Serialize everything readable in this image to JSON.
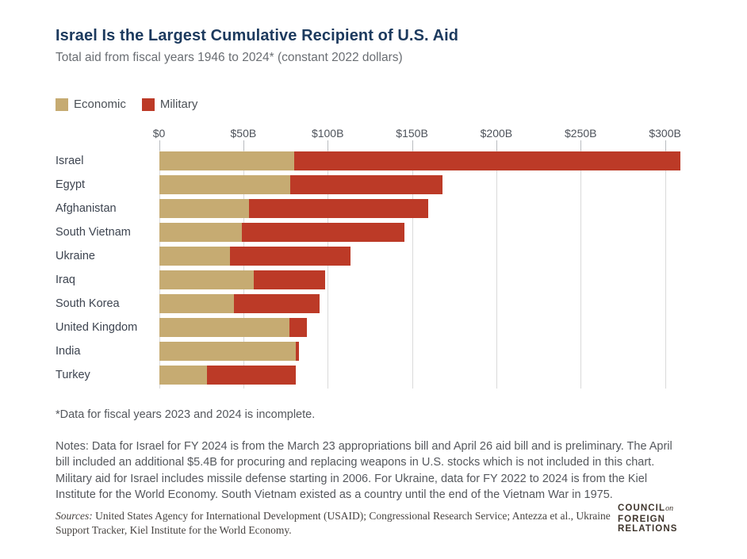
{
  "chart_data": {
    "type": "bar",
    "orientation": "horizontal",
    "stacked": true,
    "title": "Israel Is the Largest Cumulative Recipient of U.S. Aid",
    "subtitle": "Total aid from fiscal years 1946 to 2024* (constant 2022 dollars)",
    "unit": "billions of constant 2022 U.S. dollars",
    "categories": [
      "Israel",
      "Egypt",
      "Afghanistan",
      "South Vietnam",
      "Ukraine",
      "Iraq",
      "South Korea",
      "United Kingdom",
      "India",
      "Turkey"
    ],
    "series": [
      {
        "name": "Economic",
        "color": "#c6ab72",
        "values": [
          80,
          78,
          53.5,
          49,
          42,
          56,
          44.5,
          77.5,
          81,
          28.5
        ]
      },
      {
        "name": "Military",
        "color": "#bc3a27",
        "values": [
          229,
          90,
          106,
          96.5,
          71.5,
          42.5,
          50.5,
          10,
          2,
          52.5
        ]
      }
    ],
    "totals": [
      309,
      168,
      159.5,
      145.5,
      113.5,
      98.5,
      95,
      87.5,
      83,
      81
    ],
    "x_ticks": [
      {
        "label": "$0",
        "value": 0
      },
      {
        "label": "$50B",
        "value": 50
      },
      {
        "label": "$100B",
        "value": 100
      },
      {
        "label": "$150B",
        "value": 150
      },
      {
        "label": "$200B",
        "value": 200
      },
      {
        "label": "$250B",
        "value": 250
      },
      {
        "label": "$300B",
        "value": 300
      }
    ],
    "xlim": [
      0,
      315
    ],
    "grid": true,
    "legend_position": "top-left"
  },
  "footnote": "*Data for fiscal years 2023 and 2024 is incomplete.",
  "notes": {
    "lines": [
      "Notes: Data for Israel for FY 2024 is from the March 23 appropriations bill and April 26 aid bill and is preliminary. The April",
      "bill included an additional $5.4B for procuring and replacing weapons in U.S. stocks which is not included in this chart.",
      "Military aid for Israel includes missile defense starting in 2006. For Ukraine, data for FY 2022 to 2024 is from the Kiel",
      "Institute for the World Economy. South Vietnam existed as a country until the end of the Vietnam War in 1975."
    ]
  },
  "sources": {
    "label": "Sources:",
    "line1": "United States Agency for International Development (USAID); Congressional Research Service; Antezza et al., Ukraine",
    "line2": "Support Tracker, Kiel Institute for the World Economy."
  },
  "logo": {
    "line1": "COUNCIL",
    "line1_on": "on",
    "line2": "FOREIGN",
    "line3": "RELATIONS"
  },
  "colors": {
    "title": "#1c3a5e",
    "subtitle": "#6a6e73",
    "economic": "#c6ab72",
    "military": "#bc3a27",
    "gridline": "#dadada",
    "tick": "#b9bcc0",
    "body_text": "#55585d",
    "logo": "#3f352c",
    "background": "#ffffff"
  }
}
